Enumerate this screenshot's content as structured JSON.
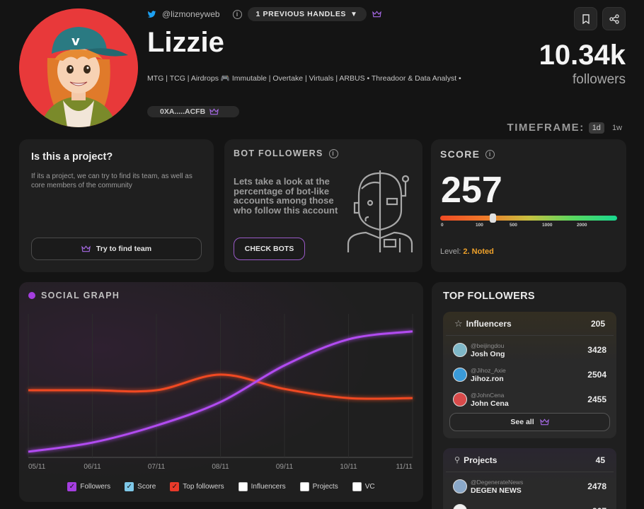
{
  "profile": {
    "twitter_handle": "@lizmoneyweb",
    "previous_handles_label": "1 PREVIOUS HANDLES",
    "name": "Lizzie",
    "bio": "MTG | TCG | Airdrops 🎮 Immutable | Overtake | Virtuals | ARBUS • Threadoor & Data Analyst •",
    "wallet": "0XA.....ACFB",
    "followers_count": "10.34k",
    "followers_label": "followers"
  },
  "timeframe": {
    "label": "TIMEFRAME:",
    "options": [
      "1d",
      "1w"
    ],
    "active": "1d"
  },
  "project_card": {
    "title": "Is this a project?",
    "description": "If its a project, we can try to find its team, as well as core members of the community",
    "button_label": "Try to find team"
  },
  "bot_card": {
    "title": "BOT FOLLOWERS",
    "description": "Lets take a look at the percentage of bot-like accounts among those who follow this account",
    "button_label": "CHECK BOTS"
  },
  "score_card": {
    "title": "SCORE",
    "value": "257",
    "scale_ticks": [
      "0",
      "100",
      "500",
      "1000",
      "2000"
    ],
    "level_label": "Level:",
    "level_value": "2. Noted"
  },
  "social_graph": {
    "title": "SOCIAL GRAPH",
    "legend": [
      {
        "label": "Followers",
        "checked": true,
        "color": "#a53ee0"
      },
      {
        "label": "Score",
        "checked": true,
        "color": "#7ec8e8"
      },
      {
        "label": "Top followers",
        "checked": true,
        "color": "#e83a2a"
      },
      {
        "label": "Influencers",
        "checked": false,
        "color": "#ffffff"
      },
      {
        "label": "Projects",
        "checked": false,
        "color": "#ffffff"
      },
      {
        "label": "VC",
        "checked": false,
        "color": "#ffffff"
      }
    ]
  },
  "chart_data": {
    "type": "line",
    "x": [
      "05/11",
      "06/11",
      "07/11",
      "08/11",
      "09/11",
      "10/11",
      "11/11"
    ],
    "series": [
      {
        "name": "Followers",
        "color": "#b14cf0",
        "values": [
          0.0,
          0.07,
          0.2,
          0.38,
          0.66,
          0.86,
          0.92
        ]
      },
      {
        "name": "Score",
        "color": "#2fc4ef",
        "values": [
          0.47,
          0.47,
          0.47,
          0.47,
          0.47,
          0.47,
          0.47
        ]
      },
      {
        "name": "Top followers",
        "color": "#f04a24",
        "values": [
          0.47,
          0.47,
          0.47,
          0.59,
          0.48,
          0.41,
          0.41
        ]
      }
    ]
  },
  "top_followers": {
    "title": "TOP FOLLOWERS",
    "influencers": {
      "label": "Influencers",
      "count": "205",
      "items": [
        {
          "handle": "@beijingdou",
          "name": "Josh Ong",
          "value": "3428",
          "color": "#7fb8c8"
        },
        {
          "handle": "@Jihoz_Axie",
          "name": "Jihoz.ron",
          "value": "2504",
          "color": "#3a9ad8"
        },
        {
          "handle": "@JohnCena",
          "name": "John Cena",
          "value": "2455",
          "color": "#d84a4a"
        }
      ],
      "see_all_label": "See all"
    },
    "projects": {
      "label": "Projects",
      "count": "45",
      "items": [
        {
          "handle": "@DegenerateNews",
          "name": "DEGEN NEWS",
          "value": "2478",
          "color": "#8aa8c8"
        },
        {
          "handle": "@FelineFiendz",
          "name": "",
          "value": "967",
          "color": "#f0f0f0"
        }
      ]
    }
  }
}
